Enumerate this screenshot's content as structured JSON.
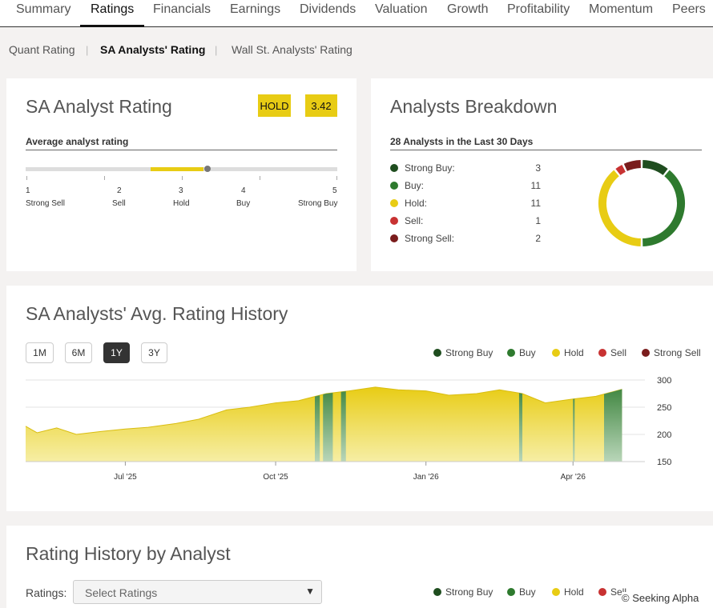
{
  "top_tabs": [
    "Summary",
    "Ratings",
    "Financials",
    "Earnings",
    "Dividends",
    "Valuation",
    "Growth",
    "Profitability",
    "Momentum",
    "Peers"
  ],
  "sub_tabs": [
    "Quant Rating",
    "SA Analysts' Rating",
    "Wall St. Analysts' Rating"
  ],
  "rating_card": {
    "title": "SA Analyst Rating",
    "badge_label": "HOLD",
    "score": "3.42",
    "section": "Average analyst rating",
    "scale_numbers": [
      "1",
      "2",
      "3",
      "4",
      "5"
    ],
    "scale_labels": [
      "Strong Sell",
      "Sell",
      "Hold",
      "Buy",
      "Strong Buy"
    ],
    "score_value": 3.42
  },
  "breakdown": {
    "title": "Analysts Breakdown",
    "section": "28 Analysts in the Last 30 Days",
    "items": [
      {
        "label": "Strong Buy:",
        "count": "3",
        "color": "#1f4d1f"
      },
      {
        "label": "Buy:",
        "count": "11",
        "color": "#2e7a2e"
      },
      {
        "label": "Hold:",
        "count": "11",
        "color": "#e8cc14"
      },
      {
        "label": "Sell:",
        "count": "1",
        "color": "#c83232"
      },
      {
        "label": "Strong Sell:",
        "count": "2",
        "color": "#7a1c1c"
      }
    ]
  },
  "history": {
    "title": "SA Analysts' Avg. Rating History",
    "ranges": [
      "1M",
      "6M",
      "1Y",
      "3Y"
    ],
    "active_range": "1Y",
    "legend": [
      "Strong Buy",
      "Buy",
      "Hold",
      "Sell",
      "Strong Sell"
    ],
    "colors": {
      "strong_buy": "#1f4d1f",
      "buy": "#2e7a2e",
      "hold": "#e8cc14",
      "sell": "#c83232",
      "strong_sell": "#7a1c1c"
    }
  },
  "chart_data": {
    "type": "area",
    "x_ticks": [
      "Jul '25",
      "Oct '25",
      "Jan '26",
      "Apr '26"
    ],
    "y_ticks": [
      "300",
      "250",
      "200",
      "150"
    ],
    "ylim": [
      150,
      300
    ],
    "grid": true,
    "series": [
      {
        "name": "Hold",
        "x": [
          "2025-05-01",
          "2025-05-08",
          "2025-05-20",
          "2025-06-01",
          "2025-06-15",
          "2025-07-01",
          "2025-07-15",
          "2025-08-01",
          "2025-08-15",
          "2025-09-01",
          "2025-09-15",
          "2025-10-01",
          "2025-10-15",
          "2025-11-01",
          "2025-11-15",
          "2025-12-01",
          "2025-12-15",
          "2026-01-01",
          "2026-01-15",
          "2026-02-01",
          "2026-02-15",
          "2026-03-01",
          "2026-03-15",
          "2026-04-01",
          "2026-04-15",
          "2026-05-01"
        ],
        "values": [
          215,
          203,
          212,
          200,
          205,
          210,
          213,
          220,
          228,
          245,
          250,
          258,
          262,
          275,
          280,
          287,
          282,
          280,
          272,
          275,
          282,
          275,
          258,
          265,
          270,
          283
        ]
      }
    ],
    "buy_bands": [
      {
        "from": "2025-10-25",
        "to": "2025-10-28"
      },
      {
        "from": "2025-10-30",
        "to": "2025-11-05"
      },
      {
        "from": "2025-11-10",
        "to": "2025-11-13"
      },
      {
        "from": "2026-02-27",
        "to": "2026-03-01"
      },
      {
        "from": "2026-04-01",
        "to": "2026-04-02"
      },
      {
        "from": "2026-04-20",
        "to": "2026-05-08"
      },
      {
        "from": "2026-05-11",
        "to": "2026-05-13"
      }
    ]
  },
  "analyst_history": {
    "title": "Rating History by Analyst",
    "ratings_label": "Ratings:",
    "select_placeholder": "Select Ratings",
    "legend": [
      "Strong Buy",
      "Buy",
      "Hold",
      "Sell",
      "Strong Sell"
    ]
  },
  "copyright": "© Seeking Alpha"
}
